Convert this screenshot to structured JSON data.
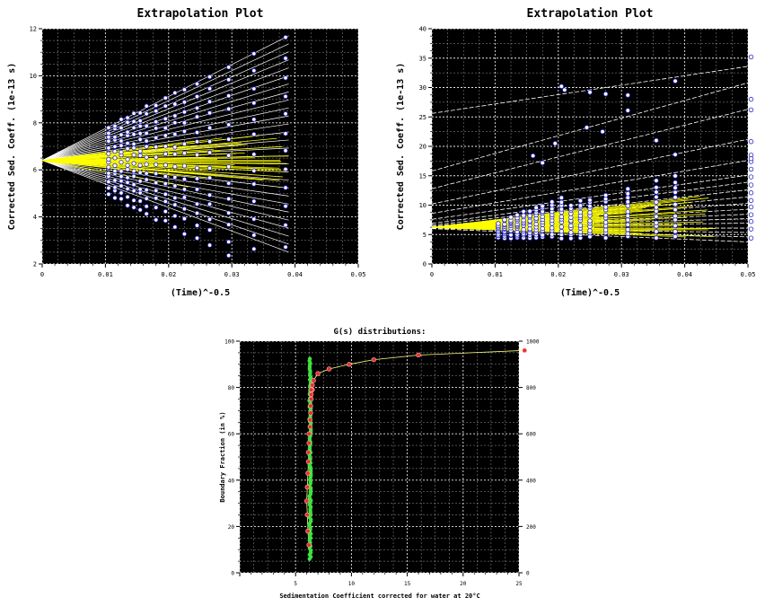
{
  "chart_data": [
    {
      "id": "plot1",
      "type": "scatter",
      "title": "Extrapolation Plot",
      "xlabel": "(Time)^-0.5",
      "ylabel": "Corrected Sed. Coeff. (1e-13 s)",
      "xlim": [
        0,
        0.05
      ],
      "ylim": [
        2,
        12
      ],
      "xticks": [
        "0",
        "0.01",
        "0.02",
        "0.03",
        "0.04",
        "0.05"
      ],
      "yticks": [
        "2",
        "4",
        "6",
        "8",
        "10",
        "12"
      ],
      "grid": true,
      "colors": {
        "background": "#000000",
        "grid": "#ffffff",
        "points": "#ffffff",
        "point_edge": "#2828c8",
        "lines": "#ffffff",
        "lines_inner": "#ffff00"
      },
      "fan": {
        "origin": [
          0,
          6.4
        ],
        "x_end": 0.039,
        "y_end_min": 2.5,
        "y_end_max": 11.7,
        "n_lines": 28
      },
      "columns_x": [
        0.0105,
        0.0115,
        0.0125,
        0.0135,
        0.0145,
        0.0155,
        0.0165,
        0.018,
        0.0195,
        0.021,
        0.0225,
        0.0245,
        0.0265,
        0.0295,
        0.0335,
        0.0385
      ],
      "point_spread": {
        "origin": 6.4,
        "slope_max": 135
      }
    },
    {
      "id": "plot2",
      "type": "scatter",
      "title": "Extrapolation Plot",
      "xlabel": "(Time)^-0.5",
      "ylabel": "Corrected Sed. Coeff. (1e-13 s)",
      "xlim": [
        0,
        0.05
      ],
      "ylim": [
        0,
        40
      ],
      "xticks": [
        "0",
        "0.01",
        "0.02",
        "0.03",
        "0.04",
        "0.05"
      ],
      "yticks": [
        "0",
        "5",
        "10",
        "15",
        "20",
        "25",
        "30",
        "35",
        "40"
      ],
      "grid": true,
      "colors": {
        "background": "#000000",
        "grid": "#ffffff",
        "points": "#ffffff",
        "point_edge": "#2828c8",
        "lines": "#ffffff",
        "lines_inner": "#ffff00"
      },
      "lines": [
        {
          "y0": 25.6,
          "slope": 160
        },
        {
          "y0": 15.8,
          "slope": 300
        },
        {
          "y0": 12.8,
          "slope": 270
        },
        {
          "y0": 10.2,
          "slope": 220
        },
        {
          "y0": 8.6,
          "slope": 180
        },
        {
          "y0": 7.6,
          "slope": 150
        },
        {
          "y0": 6.9,
          "slope": 140
        },
        {
          "y0": 6.6,
          "slope": 120
        },
        {
          "y0": 6.4,
          "slope": 100
        },
        {
          "y0": 6.3,
          "slope": 80
        },
        {
          "y0": 6.3,
          "slope": 60
        },
        {
          "y0": 6.2,
          "slope": 45
        },
        {
          "y0": 6.2,
          "slope": 30
        },
        {
          "y0": 6.2,
          "slope": 15
        },
        {
          "y0": 6.1,
          "slope": 0
        },
        {
          "y0": 6.1,
          "slope": -15
        },
        {
          "y0": 6.1,
          "slope": -30
        },
        {
          "y0": 6.0,
          "slope": -45
        }
      ],
      "columns_x": [
        0.0105,
        0.0115,
        0.0125,
        0.0135,
        0.0145,
        0.0155,
        0.0165,
        0.0175,
        0.019,
        0.0205,
        0.022,
        0.0235,
        0.025,
        0.0275,
        0.031,
        0.0355,
        0.0385,
        0.0505
      ],
      "high_points": [
        [
          0.0205,
          30.2
        ],
        [
          0.021,
          29.6
        ],
        [
          0.025,
          29.2
        ],
        [
          0.0275,
          28.9
        ],
        [
          0.031,
          28.7
        ],
        [
          0.0385,
          31.1
        ],
        [
          0.0505,
          35.2
        ],
        [
          0.0195,
          20.5
        ],
        [
          0.0505,
          26.2
        ],
        [
          0.0505,
          20.8
        ],
        [
          0.016,
          18.4
        ],
        [
          0.0175,
          17.2
        ],
        [
          0.0245,
          23.2
        ],
        [
          0.027,
          22.5
        ],
        [
          0.031,
          26.1
        ],
        [
          0.0355,
          21.0
        ],
        [
          0.0385,
          18.6
        ],
        [
          0.0505,
          17.9
        ],
        [
          0.0505,
          28.0
        ]
      ]
    },
    {
      "id": "plot3",
      "type": "scatter",
      "title": "G(s) distributions:",
      "xlabel": "Sedimentation Coefficient corrected for water at 20°C",
      "ylabel": "Boundary Fraction (in %)",
      "xlim": [
        0,
        25
      ],
      "ylim": [
        0,
        100
      ],
      "y2lim": [
        0,
        1000
      ],
      "xticks": [
        "",
        "5",
        "10",
        "15",
        "20",
        "25"
      ],
      "yticks": [
        "0",
        "20",
        "40",
        "60",
        "80",
        "100"
      ],
      "y2ticks": [
        "0",
        "200",
        "400",
        "600",
        "800",
        "1000"
      ],
      "grid": true,
      "colors": {
        "background": "#000000",
        "grid": "#ffffff",
        "green": "#40e040",
        "red": "#e83030",
        "curve": "#ffff80"
      },
      "green_series": {
        "x": 6.3,
        "y_range": [
          6,
          93
        ]
      },
      "red_series": {
        "x": [
          6.2,
          6.1,
          6.05,
          6.0,
          6.05,
          6.1,
          6.15,
          6.15,
          6.2,
          6.2,
          6.3,
          6.3,
          6.35,
          6.35,
          6.4,
          6.4,
          6.5,
          6.5,
          6.4,
          6.6,
          7.0,
          8.0,
          9.8,
          12.0,
          16.0,
          25.5
        ],
        "y": [
          12,
          18,
          25,
          31,
          37,
          43,
          48,
          52,
          56,
          60,
          63,
          66,
          69,
          72,
          75,
          77,
          79,
          81,
          79,
          83,
          86,
          88,
          90,
          92,
          94,
          96
        ]
      }
    }
  ]
}
